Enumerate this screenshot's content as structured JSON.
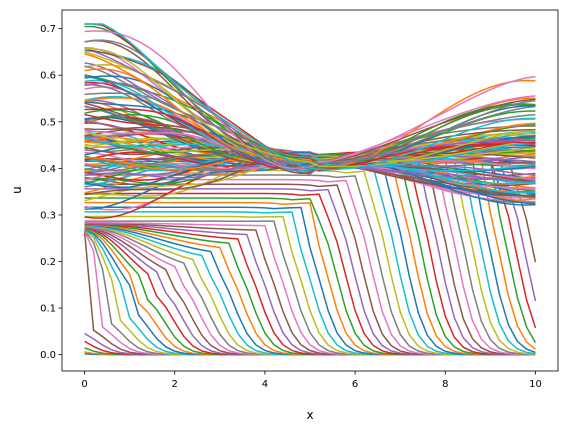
{
  "chart_data": {
    "type": "line",
    "title": "",
    "xlabel": "x",
    "ylabel": "u",
    "xlim": [
      -0.5,
      10.5
    ],
    "ylim": [
      -0.035,
      0.74
    ],
    "x_ticks": [
      0,
      2,
      4,
      6,
      8,
      10
    ],
    "y_ticks": [
      0.0,
      0.1,
      0.2,
      0.3,
      0.4,
      0.5,
      0.6,
      0.7
    ],
    "x_tick_labels": [
      "0",
      "2",
      "4",
      "6",
      "8",
      "10"
    ],
    "y_tick_labels": [
      "0.0",
      "0.1",
      "0.2",
      "0.3",
      "0.4",
      "0.5",
      "0.6",
      "0.7"
    ],
    "grid": false,
    "legend": "none",
    "x": [
      0,
      0.2,
      0.4,
      0.6,
      0.8,
      1.0,
      1.2,
      1.4,
      1.6,
      1.8,
      2.0,
      2.2,
      2.4,
      2.6,
      2.8,
      3.0,
      3.2,
      3.4,
      3.6,
      3.8,
      4.0,
      4.2,
      4.4,
      4.6,
      4.8,
      5.0,
      5.2,
      5.4,
      5.6,
      5.8,
      6.0,
      6.2,
      6.4,
      6.6,
      6.8,
      7.0,
      7.2,
      7.4,
      7.6,
      7.8,
      8.0,
      8.2,
      8.4,
      8.6,
      8.8,
      9.0,
      9.2,
      9.4,
      9.6,
      9.8,
      10.0
    ],
    "series_count": 160,
    "colors": [
      "#1f77b4",
      "#ff7f0e",
      "#2ca02c",
      "#d62728",
      "#9467bd",
      "#8c564b",
      "#e377c2",
      "#7f7f7f",
      "#bcbd22",
      "#17becf"
    ]
  }
}
